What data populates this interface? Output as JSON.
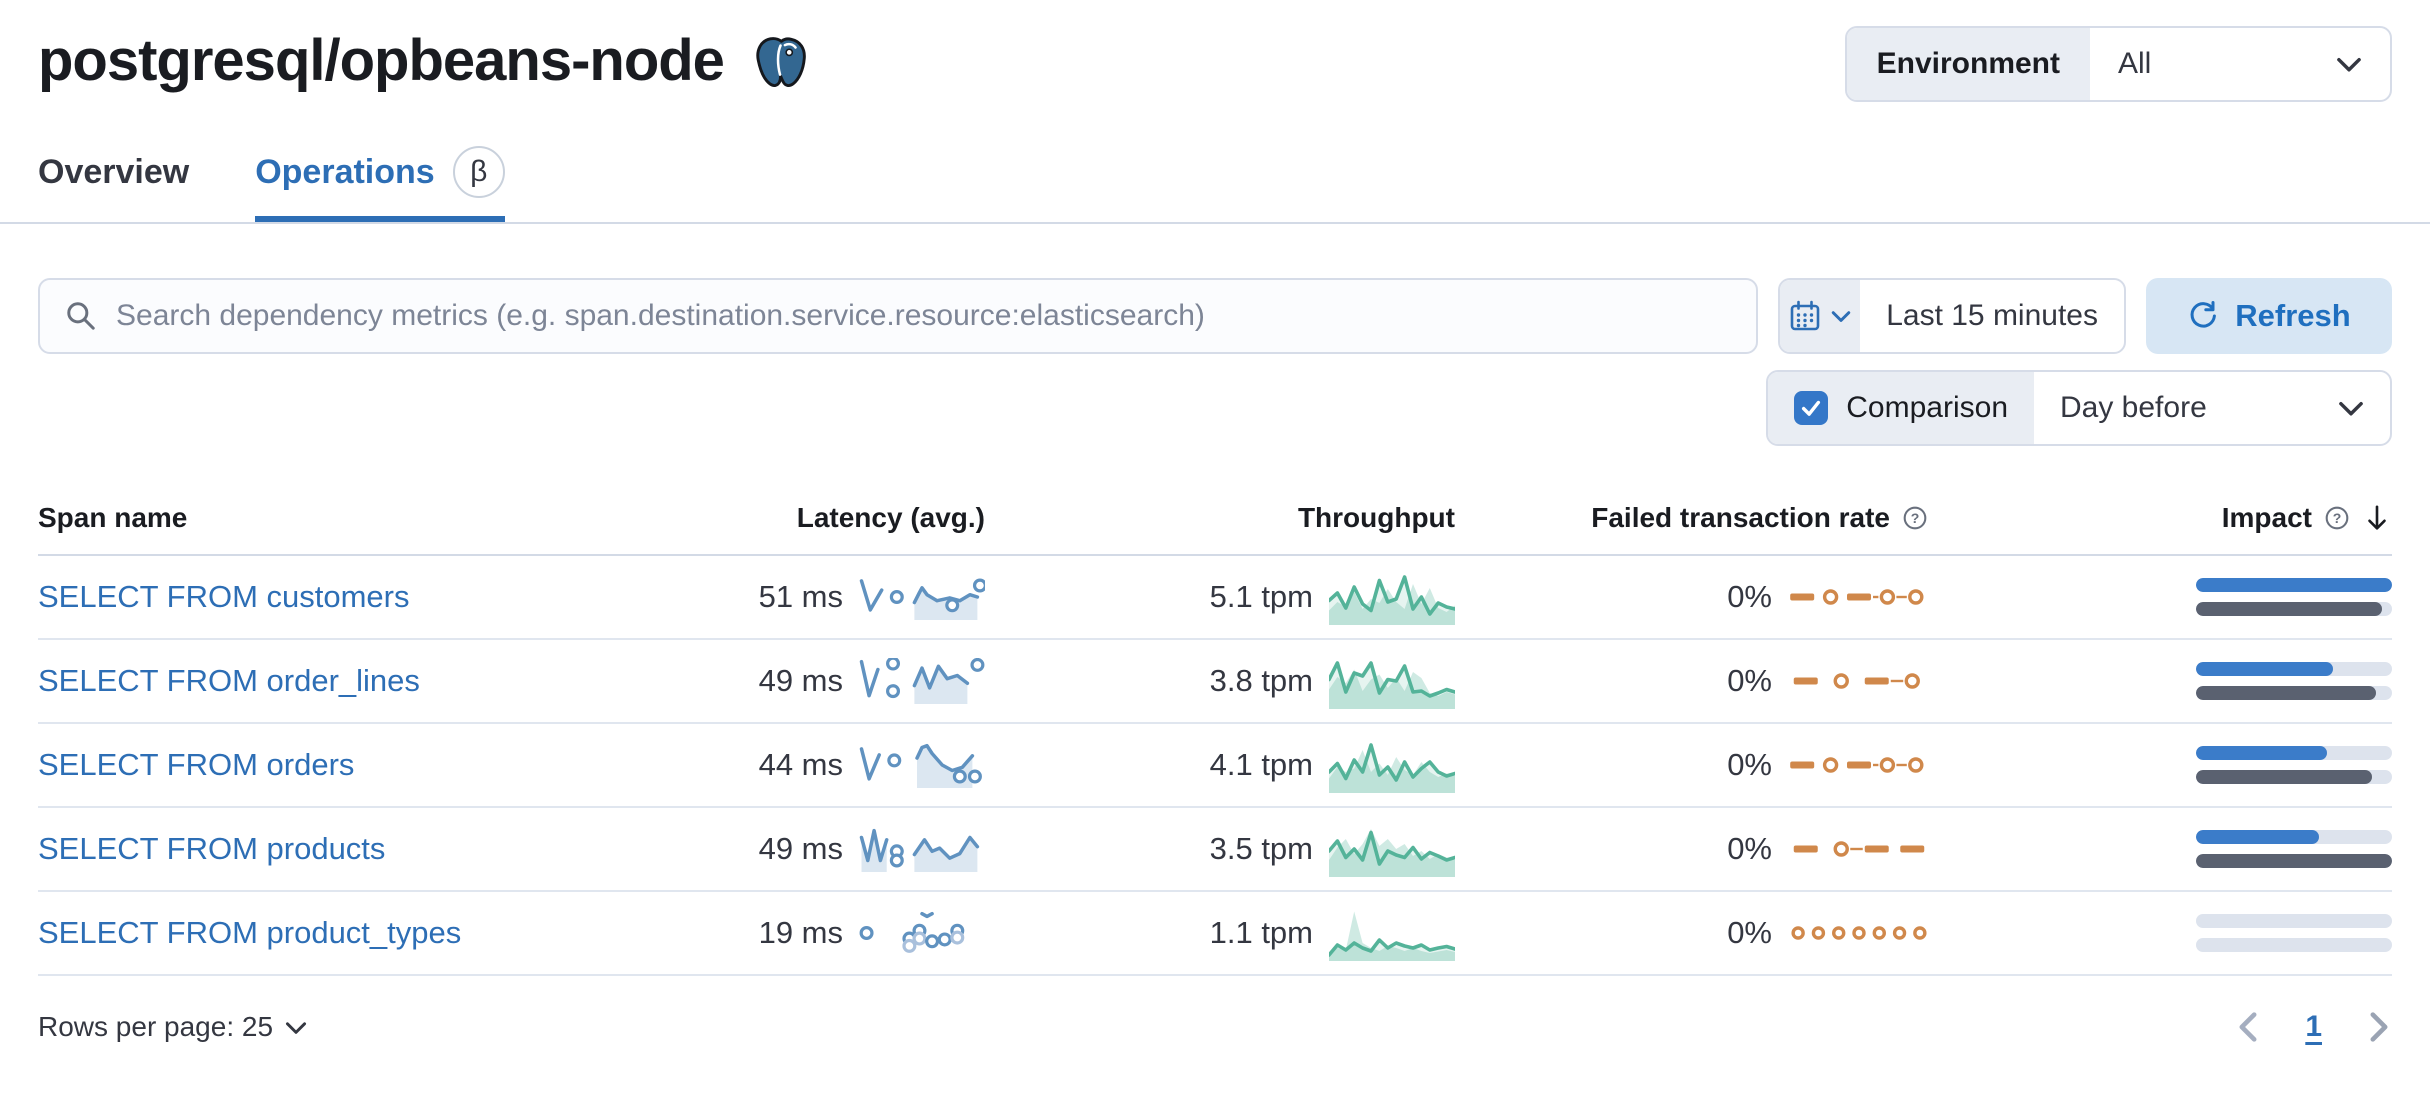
{
  "page": {
    "title": "postgresql/opbeans-node",
    "title_icon": "postgresql-logo-icon"
  },
  "environment": {
    "label": "Environment",
    "value": "All"
  },
  "tabs": [
    {
      "label": "Overview",
      "active": false
    },
    {
      "label": "Operations",
      "active": true,
      "beta": "β"
    }
  ],
  "search": {
    "placeholder": "Search dependency metrics (e.g. span.destination.service.resource:elasticsearch)",
    "icon": "search-icon"
  },
  "time_picker": {
    "icon": "calendar-icon",
    "value": "Last 15 minutes",
    "refresh_label": "Refresh",
    "refresh_icon": "refresh-icon"
  },
  "comparison": {
    "label": "Comparison",
    "checked": true,
    "value": "Day before"
  },
  "table": {
    "columns": {
      "span_name": "Span name",
      "latency": "Latency (avg.)",
      "throughput": "Throughput",
      "failed_rate": "Failed transaction rate",
      "impact": "Impact"
    },
    "sort": {
      "column": "impact",
      "direction": "desc"
    },
    "rows": [
      {
        "span_name": "SELECT FROM customers",
        "latency": "51 ms",
        "throughput": "5.1 tpm",
        "failed_rate": "0%",
        "latency_spark": {
          "segments": [
            [
              [
                2,
                15
              ],
              [
                9,
                78
              ],
              [
                18,
                35
              ]
            ],
            [
              [
                44,
                62
              ],
              [
                48,
                40
              ],
              [
                50,
                30
              ],
              [
                54,
                45
              ],
              [
                62,
                58
              ],
              [
                72,
                52
              ],
              [
                80,
                58
              ],
              [
                88,
                45
              ],
              [
                94,
                50
              ]
            ]
          ],
          "dots": [
            [
              30,
              50
            ],
            [
              74,
              68
            ],
            [
              96,
              25
            ]
          ]
        },
        "throughput_spark": {
          "current": [
            45,
            60,
            30,
            72,
            38,
            25,
            85,
            42,
            48,
            92,
            28,
            52,
            18,
            40,
            32,
            28
          ],
          "comparison": [
            25,
            42,
            32,
            62,
            28,
            48,
            40,
            68,
            42,
            28,
            78,
            38,
            70,
            30,
            22,
            35
          ]
        },
        "failed_spark": [
          {
            "t": "dash"
          },
          {
            "t": "dot"
          },
          {
            "t": "dash"
          },
          {
            "t": "dot",
            "link": true
          },
          {
            "t": "dot",
            "link": true
          }
        ],
        "impact": {
          "current": 100,
          "previous": 95
        }
      },
      {
        "span_name": "SELECT FROM order_lines",
        "latency": "49 ms",
        "throughput": "3.8 tpm",
        "failed_rate": "0%",
        "latency_spark": {
          "segments": [
            [
              [
                2,
                8
              ],
              [
                8,
                82
              ],
              [
                15,
                25
              ]
            ],
            [
              [
                44,
                60
              ],
              [
                50,
                22
              ],
              [
                56,
                65
              ],
              [
                63,
                18
              ],
              [
                70,
                45
              ],
              [
                78,
                38
              ],
              [
                86,
                55
              ]
            ]
          ],
          "dots": [
            [
              27,
              12
            ],
            [
              27,
              72
            ],
            [
              94,
              15
            ]
          ]
        },
        "throughput_spark": {
          "current": [
            55,
            88,
            30,
            68,
            62,
            88,
            28,
            55,
            52,
            82,
            30,
            32,
            22,
            28,
            35,
            30
          ],
          "comparison": [
            35,
            60,
            48,
            75,
            32,
            55,
            65,
            38,
            58,
            32,
            70,
            58,
            28,
            22,
            30,
            25
          ]
        },
        "failed_spark": [
          {
            "t": "dash"
          },
          {
            "t": "dot"
          },
          {
            "t": "dash"
          },
          {
            "t": "dot",
            "link": true
          }
        ],
        "impact": {
          "current": 70,
          "previous": 92
        }
      },
      {
        "span_name": "SELECT FROM orders",
        "latency": "44 ms",
        "throughput": "4.1 tpm",
        "failed_rate": "0%",
        "latency_spark": {
          "segments": [
            [
              [
                2,
                15
              ],
              [
                8,
                80
              ],
              [
                16,
                28
              ]
            ],
            [
              [
                46,
                35
              ],
              [
                50,
                12
              ],
              [
                54,
                8
              ],
              [
                58,
                25
              ],
              [
                66,
                50
              ],
              [
                74,
                62
              ],
              [
                82,
                55
              ],
              [
                90,
                30
              ]
            ]
          ],
          "dots": [
            [
              28,
              40
            ],
            [
              80,
              75
            ],
            [
              92,
              75
            ]
          ]
        },
        "throughput_spark": {
          "current": [
            38,
            55,
            25,
            62,
            38,
            92,
            32,
            48,
            22,
            58,
            28,
            45,
            58,
            38,
            30,
            35
          ],
          "comparison": [
            25,
            48,
            38,
            45,
            82,
            38,
            55,
            32,
            68,
            42,
            32,
            58,
            38,
            28,
            35,
            30
          ]
        },
        "failed_spark": [
          {
            "t": "dash"
          },
          {
            "t": "dot"
          },
          {
            "t": "dash"
          },
          {
            "t": "dot",
            "link": true
          },
          {
            "t": "dot",
            "link": true
          }
        ],
        "impact": {
          "current": 67,
          "previous": 90
        }
      },
      {
        "span_name": "SELECT FROM products",
        "latency": "49 ms",
        "throughput": "3.5 tpm",
        "failed_rate": "0%",
        "latency_spark": {
          "segments": [
            [
              [
                2,
                25
              ],
              [
                7,
                75
              ],
              [
                12,
                10
              ],
              [
                17,
                75
              ],
              [
                22,
                30
              ]
            ],
            [
              [
                44,
                62
              ],
              [
                52,
                30
              ],
              [
                58,
                55
              ],
              [
                64,
                48
              ],
              [
                72,
                70
              ],
              [
                80,
                60
              ],
              [
                88,
                25
              ],
              [
                94,
                45
              ]
            ]
          ],
          "dots": [
            [
              30,
              55
            ],
            [
              30,
              75
            ]
          ]
        },
        "throughput_spark": {
          "current": [
            48,
            68,
            35,
            52,
            30,
            85,
            22,
            48,
            40,
            35,
            55,
            32,
            45,
            38,
            30,
            35
          ],
          "comparison": [
            30,
            55,
            72,
            42,
            62,
            92,
            58,
            72,
            52,
            62,
            38,
            48,
            32,
            42,
            35,
            30
          ]
        },
        "failed_spark": [
          {
            "t": "dash"
          },
          {
            "t": "dot"
          },
          {
            "t": "dash",
            "link": true
          },
          {
            "t": "dash"
          }
        ],
        "impact": {
          "current": 63,
          "previous": 100
        }
      },
      {
        "span_name": "SELECT FROM product_types",
        "latency": "19 ms",
        "throughput": "1.1 tpm",
        "failed_rate": "0%",
        "latency_spark": {
          "segments": [
            [
              [
                50,
                8
              ],
              [
                54,
                14
              ],
              [
                58,
                8
              ]
            ]
          ],
          "dots": [
            [
              6,
              50
            ],
            [
              40,
              62
            ],
            [
              40,
              78,
              1
            ],
            [
              48,
              45
            ],
            [
              48,
              62,
              1
            ],
            [
              58,
              68
            ],
            [
              68,
              64
            ],
            [
              78,
              45
            ],
            [
              78,
              60,
              1
            ]
          ]
        },
        "throughput_spark": {
          "current": [
            8,
            28,
            18,
            32,
            22,
            16,
            38,
            22,
            32,
            26,
            22,
            28,
            18,
            22,
            25,
            20
          ],
          "comparison": [
            12,
            22,
            18,
            95,
            32,
            22,
            16,
            26,
            22,
            16,
            22,
            16,
            12,
            15,
            18,
            14
          ]
        },
        "failed_spark": [
          {
            "t": "dot"
          },
          {
            "t": "dot"
          },
          {
            "t": "dot"
          },
          {
            "t": "dot"
          },
          {
            "t": "dot"
          },
          {
            "t": "dot"
          },
          {
            "t": "dot"
          }
        ],
        "impact": {
          "current": 0,
          "previous": 0
        }
      }
    ]
  },
  "footer": {
    "rows_per_page": "Rows per page: 25",
    "page": "1"
  },
  "colors": {
    "accent_blue": "#2d6eb5",
    "latency_stroke": "#6092c0",
    "latency_stroke_light": "#a9c0dc",
    "latency_fill": "rgba(96,146,192,0.22)",
    "throughput_stroke": "#54b399",
    "throughput_fill": "rgba(84,179,153,0.15)",
    "throughput_cmp_fill": "rgba(84,179,153,0.28)",
    "failed_orange": "#d0884b",
    "impact_current": "#3b7cc9",
    "impact_previous": "#5a6170",
    "impact_track": "#dde3ed"
  },
  "icons": {
    "logo": "postgresql-logo-icon",
    "search": "search-icon",
    "calendar": "calendar-icon",
    "refresh": "refresh-icon",
    "chevron_down": "chevron-down-icon",
    "chevron_left": "chevron-left-icon",
    "chevron_right": "chevron-right-icon",
    "question": "question-circle-icon",
    "sort_desc": "sort-descending-icon",
    "checkbox": "checkbox-checked-icon",
    "beta": "beta-badge"
  }
}
